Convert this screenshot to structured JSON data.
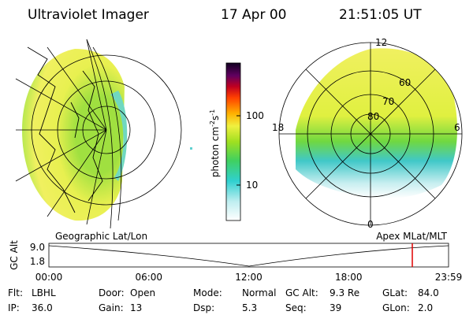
{
  "header": {
    "instrument": "Ultraviolet Imager",
    "date": "17 Apr 00",
    "time": "21:51:05 UT"
  },
  "colorbar": {
    "label": [
      "photon cm",
      "-2",
      "s",
      "-1"
    ],
    "ticks": [
      "100",
      "10"
    ]
  },
  "polar": {
    "mlt_labels": [
      "12",
      "18",
      "6",
      "0"
    ],
    "lat_labels": [
      "80",
      "70",
      "60"
    ]
  },
  "panels": {
    "left": "Geographic Lat/Lon",
    "right": "Apex MLat/MLT"
  },
  "timeline": {
    "ylabel": "GC Alt",
    "yticks": [
      "9.0",
      "1.8"
    ],
    "xticks": [
      "00:00",
      "06:00",
      "12:00",
      "18:00",
      "23:59"
    ]
  },
  "footer": {
    "rows": [
      [
        {
          "label": "Flt:",
          "value": "LBHL"
        },
        {
          "label": "Door:",
          "value": "Open"
        },
        {
          "label": "Mode:",
          "value": "Normal"
        },
        {
          "label": "GC Alt:",
          "value": "9.3 Re"
        },
        {
          "label": "GLat:",
          "value": "84.0"
        }
      ],
      [
        {
          "label": "IP:",
          "value": "36.0"
        },
        {
          "label": "Gain:",
          "value": "13"
        },
        {
          "label": "Dsp:",
          "value": "5.3"
        },
        {
          "label": "Seq:",
          "value": "39"
        },
        {
          "label": "GLon:",
          "value": "2.0"
        }
      ]
    ]
  }
}
